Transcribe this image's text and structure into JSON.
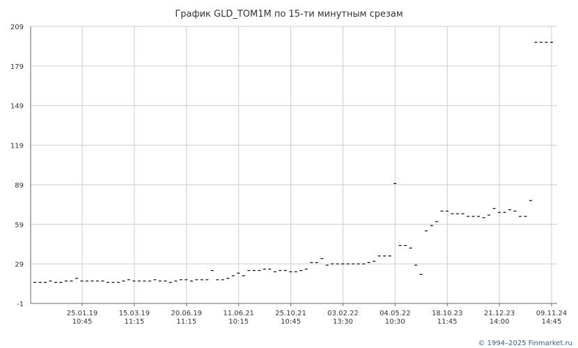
{
  "chart_data": {
    "type": "scatter",
    "title": "График GLD_TOM1M по 15-ти минутным срезам",
    "xlabel": "",
    "ylabel": "",
    "ylim": [
      -1,
      209
    ],
    "y_ticks": [
      "209",
      "179",
      "149",
      "119",
      "89",
      "59",
      "29",
      "-1"
    ],
    "x_ticks": [
      {
        "date": "25.01.19",
        "time": "10:45"
      },
      {
        "date": "15.03.19",
        "time": "11:15"
      },
      {
        "date": "20.06.19",
        "time": "11:15"
      },
      {
        "date": "11.06.21",
        "time": "10:15"
      },
      {
        "date": "25.10.21",
        "time": "10:45"
      },
      {
        "date": "03.02.22",
        "time": "13:30"
      },
      {
        "date": "04.05.22",
        "time": "10:30"
      },
      {
        "date": "18.10.23",
        "time": "11:45"
      },
      {
        "date": "21.12.23",
        "time": "14:00"
      },
      {
        "date": "09.11.24",
        "time": "14:45"
      }
    ],
    "grid": true,
    "legend": "none",
    "series": [
      {
        "values": [
          15,
          15,
          15,
          16,
          15,
          15,
          16,
          16,
          18,
          16,
          16,
          16,
          16,
          16,
          15,
          15,
          15,
          16,
          17,
          16,
          16,
          16,
          16,
          17,
          16,
          16,
          15,
          16,
          17,
          17,
          16,
          17,
          17,
          17,
          24,
          17,
          17,
          18,
          20,
          22,
          20,
          24,
          24,
          24,
          25,
          25,
          23,
          24,
          24,
          23,
          23,
          24,
          25,
          30,
          30,
          33,
          28,
          29,
          29,
          29,
          29,
          29,
          29,
          29,
          30,
          31,
          35,
          35,
          35,
          90,
          43,
          43,
          41,
          28,
          21,
          54,
          58,
          61,
          69,
          69,
          67,
          67,
          67,
          65,
          65,
          65,
          64,
          66,
          71,
          68,
          68,
          70,
          69,
          65,
          65,
          77,
          197,
          197,
          197,
          197
        ]
      }
    ],
    "marker_color": "#000000",
    "grid_color": "#cccccc"
  },
  "footer": {
    "copyright": "© 1994–2025 Finmarket.ru"
  }
}
